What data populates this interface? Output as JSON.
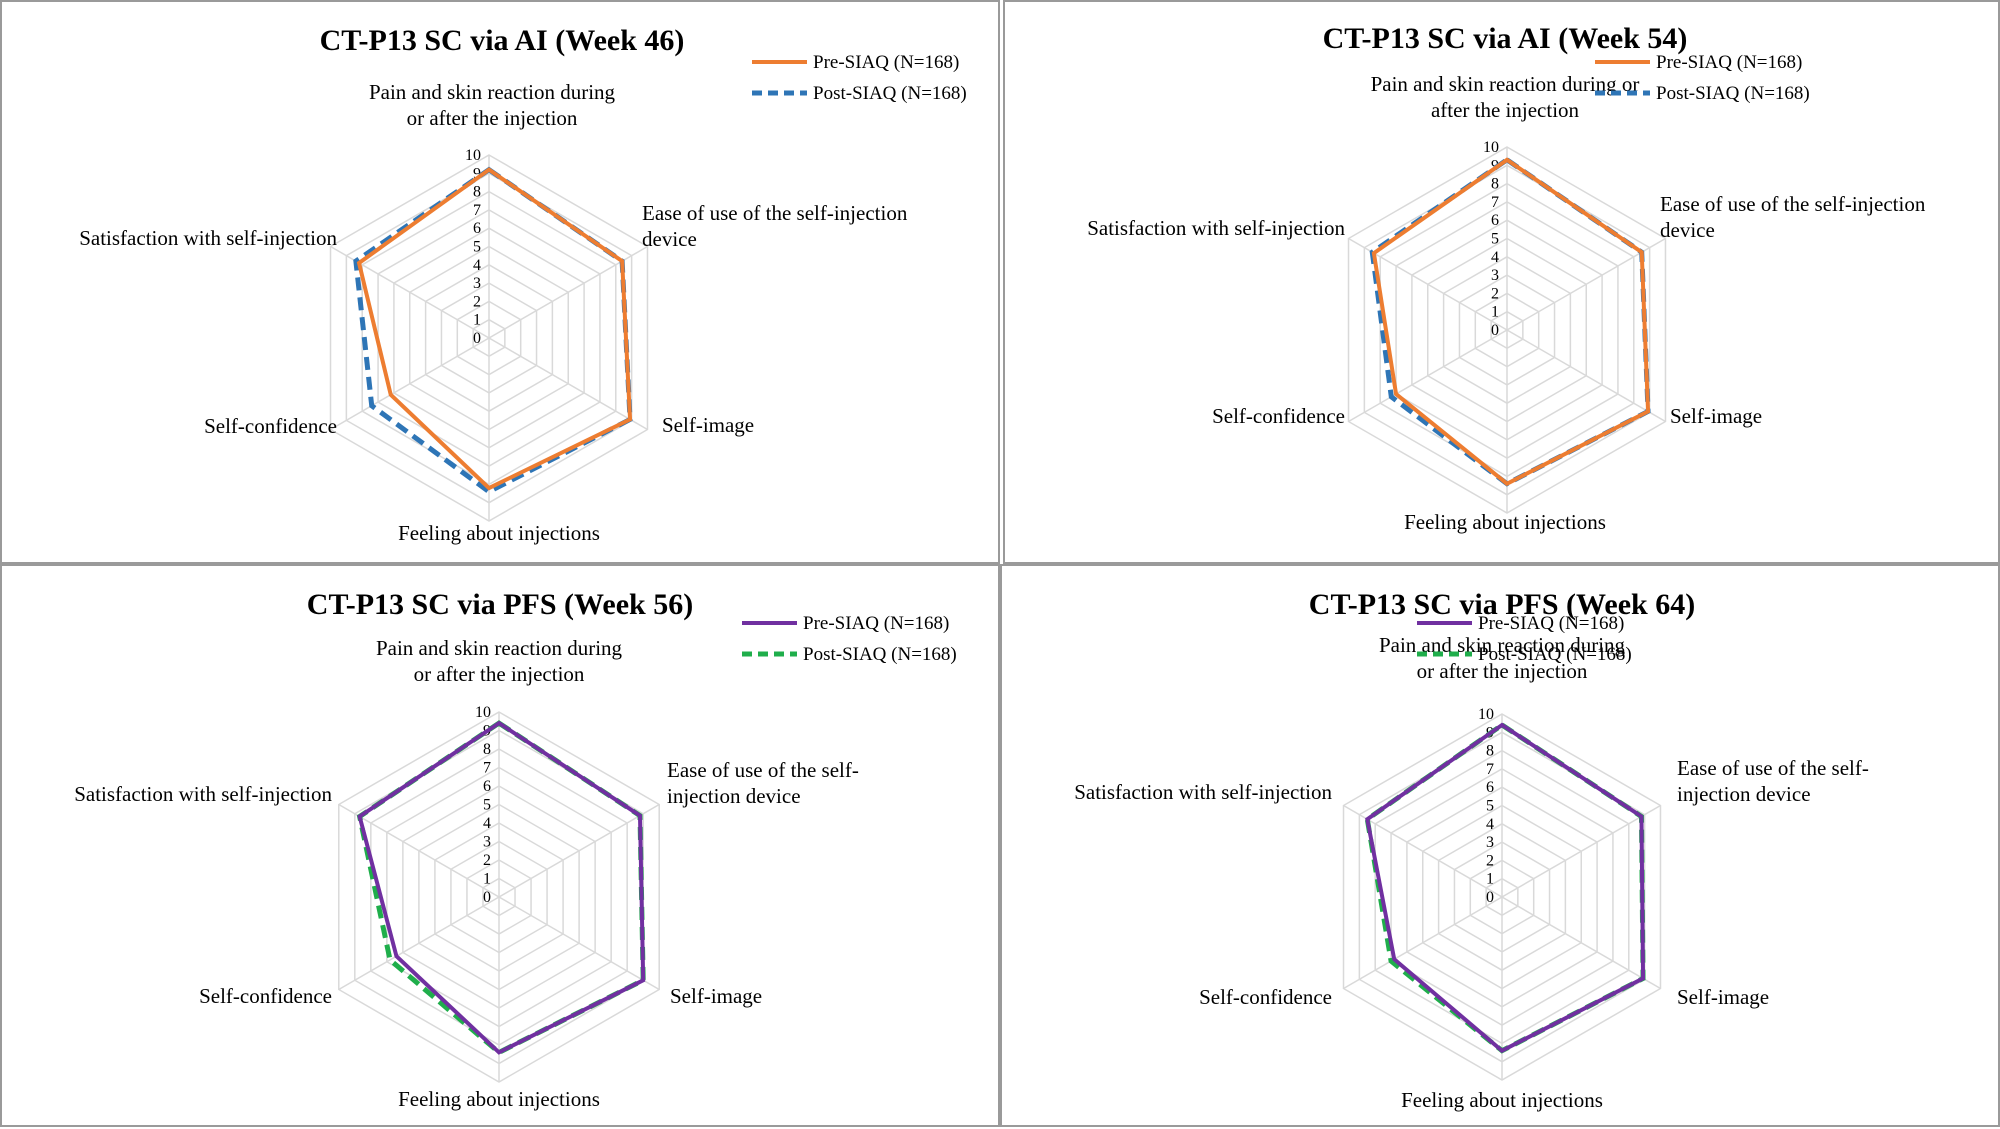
{
  "chart_data": [
    {
      "type": "radar",
      "title": "CT-P13 SC via AI (Week 46)",
      "categories": [
        "Pain and skin reaction during or after the injection",
        "Ease of use of the self-injection device",
        "Self-image",
        "Feeling about injections",
        "Self-confidence",
        "Satisfaction with self-injection"
      ],
      "category_lines": [
        [
          "Pain and skin reaction during",
          "or after the injection"
        ],
        [
          "Ease of use of the self-injection",
          "device"
        ],
        [
          "Self-image"
        ],
        [
          "Feeling about injections"
        ],
        [
          "Self-confidence"
        ],
        [
          "Satisfaction with self-injection"
        ]
      ],
      "rlim": [
        0,
        10
      ],
      "ticks": [
        "0",
        "1",
        "2",
        "3",
        "4",
        "5",
        "6",
        "7",
        "8",
        "9",
        "10"
      ],
      "legend_position": "top-right",
      "grid": true,
      "series": [
        {
          "name": "Pre-SIAQ (N=168)",
          "values": [
            9.2,
            8.4,
            8.9,
            8.2,
            6.2,
            8.2
          ],
          "color": "#ed7d31",
          "dash": "solid"
        },
        {
          "name": "Post-SIAQ (N=168)",
          "values": [
            9.2,
            8.4,
            8.9,
            8.4,
            7.4,
            8.4
          ],
          "color": "#2e75b6",
          "dash": "dashed"
        }
      ]
    },
    {
      "type": "radar",
      "title": "CT-P13 SC via AI (Week 54)",
      "categories": [
        "Pain and skin reaction during or after the injection",
        "Ease of use of the self-injection device",
        "Self-image",
        "Feeling about injections",
        "Self-confidence",
        "Satisfaction with self-injection"
      ],
      "category_lines": [
        [
          "Pain and skin reaction during or",
          "after the injection"
        ],
        [
          "Ease of use of the self-injection",
          "device"
        ],
        [
          "Self-image"
        ],
        [
          "Feeling about injections"
        ],
        [
          "Self-confidence"
        ],
        [
          "Satisfaction with self-injection"
        ]
      ],
      "rlim": [
        0,
        10
      ],
      "ticks": [
        "0",
        "1",
        "2",
        "3",
        "4",
        "5",
        "6",
        "7",
        "8",
        "9",
        "10"
      ],
      "legend_position": "top-right",
      "grid": true,
      "series": [
        {
          "name": "Pre-SIAQ (N=168)",
          "values": [
            9.3,
            8.5,
            8.9,
            8.4,
            7.0,
            8.4
          ],
          "color": "#ed7d31",
          "dash": "solid"
        },
        {
          "name": "Post-SIAQ (N=168)",
          "values": [
            9.3,
            8.5,
            8.9,
            8.4,
            7.3,
            8.5
          ],
          "color": "#2e75b6",
          "dash": "dashed"
        }
      ]
    },
    {
      "type": "radar",
      "title": "CT-P13 SC via PFS (Week 56)",
      "categories": [
        "Pain and skin reaction during or after the injection",
        "Ease of use of the self-injection device",
        "Self-image",
        "Feeling about injections",
        "Self-confidence",
        "Satisfaction with self-injection"
      ],
      "category_lines": [
        [
          "Pain and skin reaction during",
          "or after the injection"
        ],
        [
          "Ease of use of the self-",
          "injection device"
        ],
        [
          "Self-image"
        ],
        [
          "Feeling about injections"
        ],
        [
          "Self-confidence"
        ],
        [
          "Satisfaction with self-injection"
        ]
      ],
      "rlim": [
        0,
        10
      ],
      "ticks": [
        "0",
        "1",
        "2",
        "3",
        "4",
        "5",
        "6",
        "7",
        "8",
        "9",
        "10"
      ],
      "legend_position": "top-right",
      "grid": true,
      "series": [
        {
          "name": "Pre-SIAQ (N=168)",
          "values": [
            9.4,
            8.8,
            9.0,
            8.4,
            6.4,
            8.7
          ],
          "color": "#7030a0",
          "dash": "solid"
        },
        {
          "name": "Post-SIAQ (N=168)",
          "values": [
            9.4,
            8.8,
            9.0,
            8.4,
            6.8,
            8.7
          ],
          "color": "#1fae4b",
          "dash": "dashed"
        }
      ]
    },
    {
      "type": "radar",
      "title": "CT-P13 SC via PFS (Week 64)",
      "categories": [
        "Pain and skin reaction during or after the injection",
        "Ease of use of the self-injection device",
        "Self-image",
        "Feeling about injections",
        "Self-confidence",
        "Satisfaction with self-injection"
      ],
      "category_lines": [
        [
          "Pain and skin reaction during",
          "or after the injection"
        ],
        [
          "Ease of use of the self-",
          "injection device"
        ],
        [
          "Self-image"
        ],
        [
          "Feeling about injections"
        ],
        [
          "Self-confidence"
        ],
        [
          "Satisfaction with self-injection"
        ]
      ],
      "rlim": [
        0,
        10
      ],
      "ticks": [
        "0",
        "1",
        "2",
        "3",
        "4",
        "5",
        "6",
        "7",
        "8",
        "9",
        "10"
      ],
      "legend_position": "top-right",
      "grid": true,
      "series": [
        {
          "name": "Pre-SIAQ (N=168)",
          "values": [
            9.4,
            8.8,
            8.9,
            8.4,
            6.8,
            8.5
          ],
          "color": "#7030a0",
          "dash": "solid"
        },
        {
          "name": "Post-SIAQ (N=168)",
          "values": [
            9.4,
            8.8,
            8.9,
            8.4,
            7.0,
            8.5
          ],
          "color": "#1fae4b",
          "dash": "dashed"
        }
      ]
    }
  ]
}
